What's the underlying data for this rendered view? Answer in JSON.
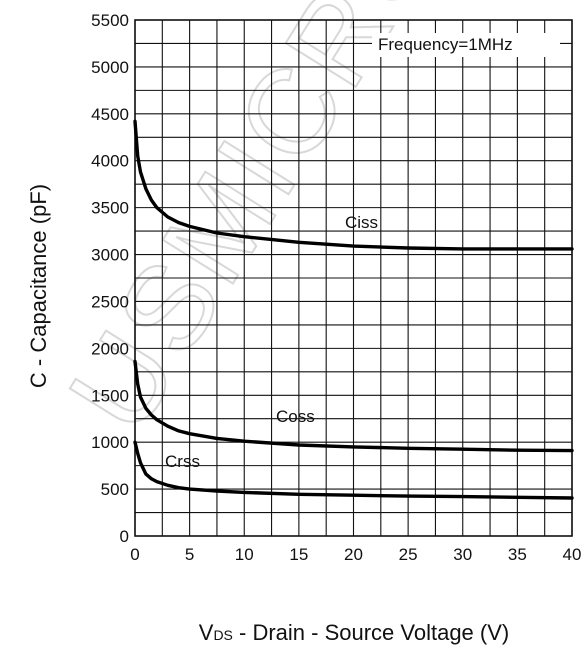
{
  "chart_data": {
    "type": "line",
    "xlabel_prefix": "V",
    "xlabel_sub": "DS",
    "xlabel_rest": " - Drain - Source Voltage (V)",
    "ylabel": "C - Capacitance (pF)",
    "xlim": [
      0,
      40
    ],
    "ylim": [
      0,
      5500
    ],
    "xticks": [
      0,
      5,
      10,
      15,
      20,
      25,
      30,
      35,
      40
    ],
    "yticks": [
      0,
      500,
      1000,
      1500,
      2000,
      2500,
      3000,
      3500,
      4000,
      4500,
      5000,
      5500
    ],
    "minor_x_step": 2.5,
    "minor_y_step": 250,
    "grid": true,
    "annotation": "Frequency=1MHz",
    "watermark": "USMICRO",
    "colors": {
      "curve": "#000000",
      "grid": "#111111",
      "watermark": "#d8d8d8"
    },
    "series": [
      {
        "name": "Ciss",
        "x": [
          0,
          0.25,
          0.5,
          1,
          1.5,
          2,
          3,
          4,
          5,
          7.5,
          10,
          15,
          20,
          25,
          30,
          35,
          40
        ],
        "y": [
          4420,
          4050,
          3880,
          3700,
          3580,
          3500,
          3400,
          3340,
          3300,
          3230,
          3190,
          3130,
          3090,
          3070,
          3060,
          3060,
          3060
        ]
      },
      {
        "name": "Coss",
        "x": [
          0,
          0.25,
          0.5,
          1,
          1.5,
          2,
          3,
          4,
          5,
          7.5,
          10,
          15,
          20,
          25,
          30,
          35,
          40
        ],
        "y": [
          1860,
          1620,
          1480,
          1360,
          1290,
          1240,
          1170,
          1120,
          1090,
          1040,
          1010,
          970,
          950,
          935,
          925,
          915,
          910
        ]
      },
      {
        "name": "Crss",
        "x": [
          0,
          0.25,
          0.5,
          1,
          1.5,
          2,
          3,
          4,
          5,
          7.5,
          10,
          15,
          20,
          25,
          30,
          35,
          40
        ],
        "y": [
          1000,
          880,
          780,
          660,
          610,
          580,
          540,
          515,
          500,
          480,
          465,
          445,
          435,
          425,
          420,
          412,
          405
        ]
      }
    ]
  }
}
